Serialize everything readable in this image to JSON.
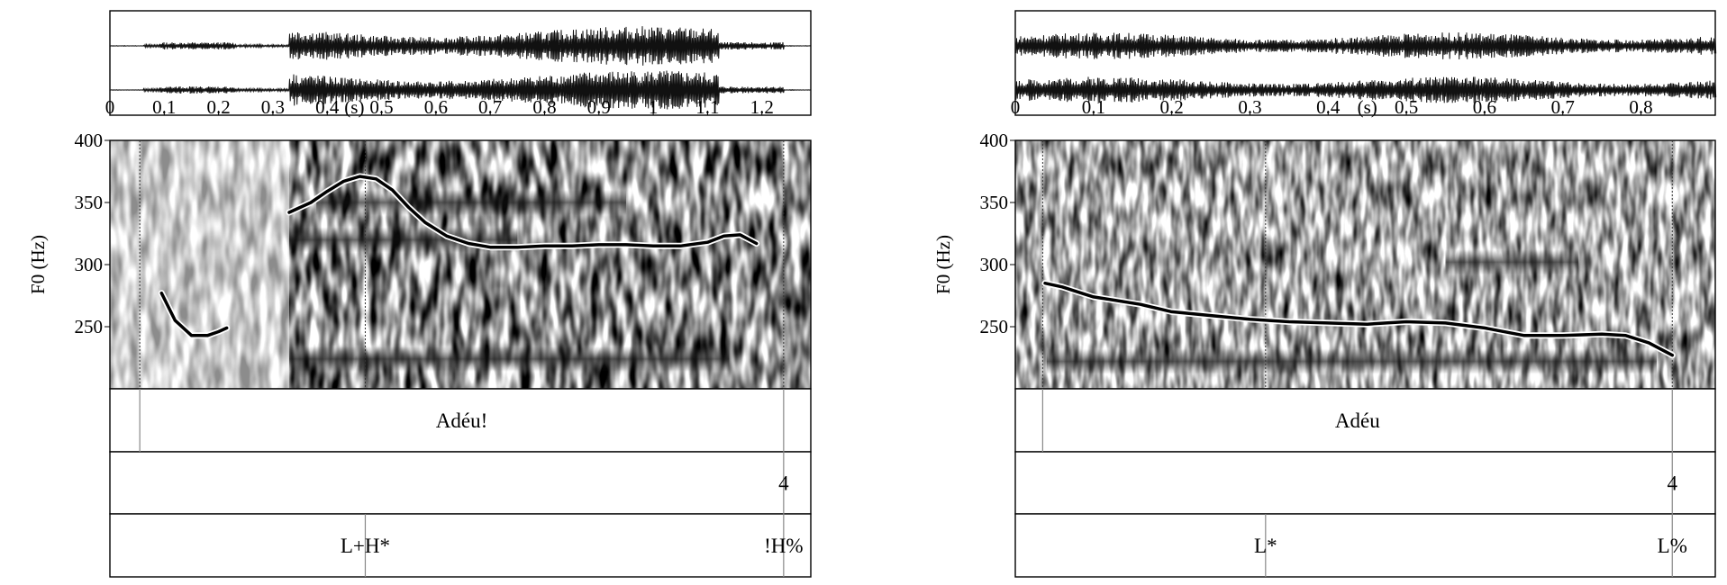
{
  "chart_data": [
    {
      "type": "line",
      "title": "",
      "xlabel": "(s)",
      "ylabel": "F0 (Hz)",
      "xlim": [
        0,
        1.29
      ],
      "ylim": [
        200,
        400
      ],
      "x_ticks": [
        "0",
        "0.1",
        "0.2",
        "0.3",
        "0.4",
        "0.5",
        "0.6",
        "0.7",
        "0.8",
        "0.9",
        "1",
        "1.1",
        "1.2"
      ],
      "x_tick_values": [
        0,
        0.1,
        0.2,
        0.3,
        0.4,
        0.5,
        0.6,
        0.7,
        0.8,
        0.9,
        1.0,
        1.1,
        1.2
      ],
      "y_ticks": [
        "400",
        "350",
        "300",
        "250"
      ],
      "y_tick_values": [
        400,
        350,
        300,
        250
      ],
      "series": [
        {
          "x": [
            0.095,
            0.12,
            0.15,
            0.18,
            0.2,
            0.215
          ],
          "y": [
            277,
            255,
            243,
            243,
            246,
            249
          ]
        },
        {
          "x": [
            0.33,
            0.37,
            0.4,
            0.43,
            0.46,
            0.49,
            0.52,
            0.55,
            0.58,
            0.62,
            0.66,
            0.7,
            0.75,
            0.8,
            0.85,
            0.9,
            0.95,
            1.0,
            1.05,
            1.1,
            1.13,
            1.16,
            1.19
          ],
          "y": [
            342,
            350,
            359,
            367,
            371,
            369,
            360,
            346,
            334,
            323,
            317,
            314,
            314,
            315,
            315,
            316,
            316,
            315,
            315,
            318,
            323,
            324,
            317
          ]
        }
      ],
      "boundaries": [
        0.055,
        0.47,
        1.24
      ],
      "tiers": [
        {
          "labels": [
            {
              "text": "Adéu!",
              "start": 0.055,
              "end": 1.24
            }
          ]
        },
        {
          "labels": [
            {
              "text": "4",
              "at": 1.24
            }
          ]
        },
        {
          "labels": [
            {
              "text": "L+H*",
              "at": 0.47
            },
            {
              "text": "!H%",
              "at": 1.24
            }
          ]
        }
      ]
    },
    {
      "type": "line",
      "title": "",
      "xlabel": "(s)",
      "ylabel": "F0 (Hz)",
      "xlim": [
        0,
        0.895
      ],
      "ylim": [
        200,
        400
      ],
      "x_ticks": [
        "0",
        "0.1",
        "0.2",
        "0.3",
        "0.4",
        "0.5",
        "0.6",
        "0.7",
        "0.8"
      ],
      "x_tick_values": [
        0,
        0.1,
        0.2,
        0.3,
        0.4,
        0.5,
        0.6,
        0.7,
        0.8
      ],
      "y_ticks": [
        "400",
        "350",
        "300",
        "250"
      ],
      "y_tick_values": [
        400,
        350,
        300,
        250
      ],
      "series": [
        {
          "x": [
            0.038,
            0.06,
            0.08,
            0.1,
            0.13,
            0.16,
            0.2,
            0.25,
            0.3,
            0.35,
            0.4,
            0.45,
            0.5,
            0.55,
            0.6,
            0.65,
            0.7,
            0.75,
            0.78,
            0.81,
            0.84
          ],
          "y": [
            285,
            282,
            278,
            274,
            271,
            268,
            262,
            259,
            256,
            254,
            253,
            252,
            254,
            253,
            249,
            243,
            243,
            244,
            243,
            237,
            227
          ]
        }
      ],
      "boundaries": [
        0.035,
        0.32,
        0.84
      ],
      "tiers": [
        {
          "labels": [
            {
              "text": "Adéu",
              "start": 0.035,
              "end": 0.84
            }
          ]
        },
        {
          "labels": [
            {
              "text": "4",
              "at": 0.84
            }
          ]
        },
        {
          "labels": [
            {
              "text": "L*",
              "at": 0.32
            },
            {
              "text": "L%",
              "at": 0.84
            }
          ]
        }
      ]
    }
  ]
}
